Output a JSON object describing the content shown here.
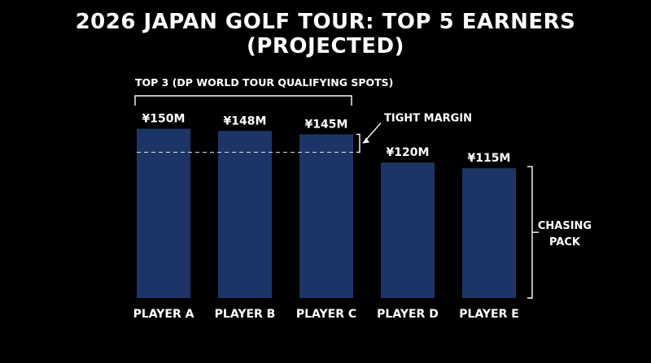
{
  "chart_data": {
    "type": "bar",
    "title": "2026 JAPAN GOLF TOUR: TOP 5 EARNERS (PROJECTED)",
    "categories": [
      "PLAYER A",
      "PLAYER B",
      "PLAYER C",
      "PLAYER D",
      "PLAYER E"
    ],
    "values": [
      150,
      148,
      145,
      120,
      115
    ],
    "value_labels": [
      "¥150M",
      "¥148M",
      "¥145M",
      "¥120M",
      "¥115M"
    ],
    "bar_color": "#1d3566",
    "background": "#000000",
    "annotations": {
      "top3": "TOP 3 (DP WORLD TOUR QUALIFYING SPOTS)",
      "margin": "TIGHT MARGIN",
      "chasing": [
        "CHASING",
        "PACK"
      ]
    }
  }
}
